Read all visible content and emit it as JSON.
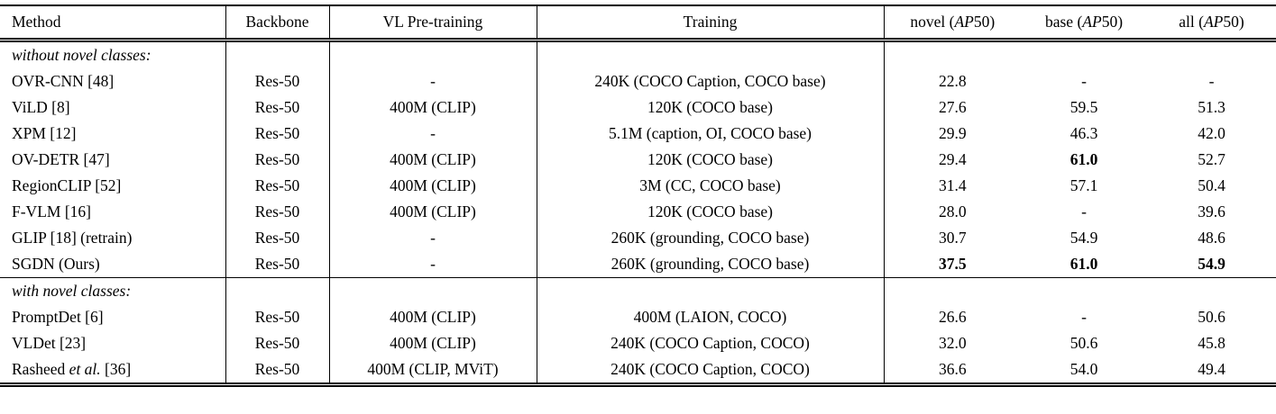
{
  "colors": {
    "background": "#ffffff",
    "text": "#000000",
    "rule": "#000000"
  },
  "table": {
    "header": {
      "method": "Method",
      "backbone": "Backbone",
      "vl_pretraining": "VL Pre-training",
      "training": "Training",
      "metrics": [
        {
          "pre": "novel (",
          "it": "AP",
          "post": "50)"
        },
        {
          "pre": "base (",
          "it": "AP",
          "post": "50)"
        },
        {
          "pre": "all (",
          "it": "AP",
          "post": "50)"
        }
      ]
    },
    "sections": [
      {
        "label": "without novel classes:",
        "rows": [
          {
            "method": {
              "pre": "OVR-CNN [48]",
              "it": "",
              "post": ""
            },
            "backbone": "Res-50",
            "vl": "-",
            "training": "240K (COCO Caption, COCO base)",
            "novel": "22.8",
            "base": "-",
            "all": "-",
            "bold": []
          },
          {
            "method": {
              "pre": "ViLD [8]",
              "it": "",
              "post": ""
            },
            "backbone": "Res-50",
            "vl": "400M (CLIP)",
            "training": "120K (COCO base)",
            "novel": "27.6",
            "base": "59.5",
            "all": "51.3",
            "bold": []
          },
          {
            "method": {
              "pre": "XPM [12]",
              "it": "",
              "post": ""
            },
            "backbone": "Res-50",
            "vl": "-",
            "training": "5.1M (caption, OI, COCO base)",
            "novel": "29.9",
            "base": "46.3",
            "all": "42.0",
            "bold": []
          },
          {
            "method": {
              "pre": "OV-DETR [47]",
              "it": "",
              "post": ""
            },
            "backbone": "Res-50",
            "vl": "400M (CLIP)",
            "training": "120K (COCO base)",
            "novel": "29.4",
            "base": "61.0",
            "all": "52.7",
            "bold": [
              "base"
            ]
          },
          {
            "method": {
              "pre": "RegionCLIP [52]",
              "it": "",
              "post": ""
            },
            "backbone": "Res-50",
            "vl": "400M (CLIP)",
            "training": "3M (CC, COCO base)",
            "novel": "31.4",
            "base": "57.1",
            "all": "50.4",
            "bold": []
          },
          {
            "method": {
              "pre": "F-VLM [16]",
              "it": "",
              "post": ""
            },
            "backbone": "Res-50",
            "vl": "400M (CLIP)",
            "training": "120K (COCO base)",
            "novel": "28.0",
            "base": "-",
            "all": "39.6",
            "bold": []
          },
          {
            "method": {
              "pre": "GLIP [18] (retrain)",
              "it": "",
              "post": ""
            },
            "backbone": "Res-50",
            "vl": "-",
            "training": "260K (grounding, COCO base)",
            "novel": "30.7",
            "base": "54.9",
            "all": "48.6",
            "bold": []
          },
          {
            "method": {
              "pre": "SGDN (Ours)",
              "it": "",
              "post": ""
            },
            "backbone": "Res-50",
            "vl": "-",
            "training": "260K (grounding, COCO base)",
            "novel": "37.5",
            "base": "61.0",
            "all": "54.9",
            "bold": [
              "novel",
              "base",
              "all"
            ]
          }
        ]
      },
      {
        "label": "with novel classes:",
        "rows": [
          {
            "method": {
              "pre": "PromptDet [6]",
              "it": "",
              "post": ""
            },
            "backbone": "Res-50",
            "vl": "400M (CLIP)",
            "training": "400M (LAION, COCO)",
            "novel": "26.6",
            "base": "-",
            "all": "50.6",
            "bold": []
          },
          {
            "method": {
              "pre": "VLDet [23]",
              "it": "",
              "post": ""
            },
            "backbone": "Res-50",
            "vl": "400M (CLIP)",
            "training": "240K (COCO Caption, COCO)",
            "novel": "32.0",
            "base": "50.6",
            "all": "45.8",
            "bold": []
          },
          {
            "method": {
              "pre": "Rasheed ",
              "it": "et al.",
              "post": " [36]"
            },
            "backbone": "Res-50",
            "vl": "400M (CLIP, MViT)",
            "training": "240K (COCO Caption, COCO)",
            "novel": "36.6",
            "base": "54.0",
            "all": "49.4",
            "bold": []
          }
        ]
      }
    ]
  }
}
